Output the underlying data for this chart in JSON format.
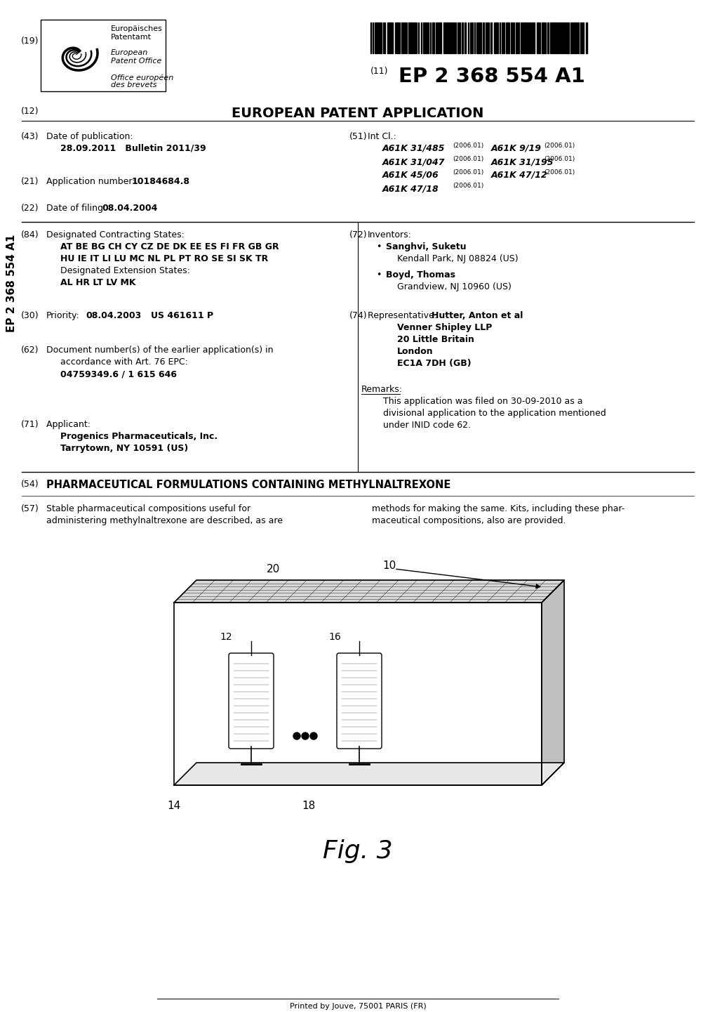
{
  "title": "EP 2 368 554 A1",
  "patent_type": "EUROPEAN PATENT APPLICATION",
  "field19": "(19)",
  "field11": "(11)",
  "field12": "(12)",
  "field43": "(43)",
  "field51": "(51)",
  "field21": "(21)",
  "field22": "(22)",
  "field84": "(84)",
  "field72": "(72)",
  "field30": "(30)",
  "field74": "(74)",
  "field62": "(62)",
  "field71": "(71)",
  "field54": "(54)",
  "field57": "(57)",
  "date_pub_label": "Date of publication:",
  "date_pub_value": "28.09.2011   Bulletin 2011/39",
  "int_cl_label": "Int Cl.:",
  "int_cl_codes": [
    [
      "A61K 31/485",
      "(2006.01)",
      "A61K 9/19",
      "(2006.01)"
    ],
    [
      "A61K 31/047",
      "(2006.01)",
      "A61K 31/195",
      "(2006.01)"
    ],
    [
      "A61K 45/06",
      "(2006.01)",
      "A61K 47/12",
      "(2006.01)"
    ],
    [
      "A61K 47/18",
      "(2006.01)",
      "",
      ""
    ]
  ],
  "app_num_label": "Application number: ",
  "app_num_value": "10184684.8",
  "date_filing_label": "Date of filing: ",
  "date_filing_value": "08.04.2004",
  "designated_label": "Designated Contracting States:",
  "designated_line1": "AT BE BG CH CY CZ DE DK EE ES FI FR GB GR",
  "designated_line2": "HU IE IT LI LU MC NL PL PT RO SE SI SK TR",
  "ext_states_label": "Designated Extension States:",
  "ext_states_value": "AL HR LT LV MK",
  "inventors_label": "Inventors:",
  "inventors": [
    [
      "Sanghvi, Suketu",
      "Kendall Park, NJ 08824 (US)"
    ],
    [
      "Boyd, Thomas",
      "Grandview, NJ 10960 (US)"
    ]
  ],
  "priority_label": "Priority:  ",
  "priority_date": "08.04.2003",
  "priority_ref": "US 461611 P",
  "representative_label": "Representative: ",
  "representative_name": "Hutter, Anton et al",
  "representative_lines": [
    "Venner Shipley LLP",
    "20 Little Britain",
    "London",
    "EC1A 7DH (GB)"
  ],
  "doc_num_label1": "Document number(s) of the earlier application(s) in",
  "doc_num_label2": "accordance with Art. 76 EPC:",
  "doc_num_value": "04759349.6 / 1 615 646",
  "applicant_label": "Applicant: ",
  "applicant_line1": "Progenics Pharmaceuticals, Inc.",
  "applicant_line2": "Tarrytown, NY 10591 (US)",
  "remarks_label": "Remarks:",
  "remarks_line1": "This application was filed on 30-09-2010 as a",
  "remarks_line2": "divisional application to the application mentioned",
  "remarks_line3": "under INID code 62.",
  "title54": "PHARMACEUTICAL FORMULATIONS CONTAINING METHYLNALTREXONE",
  "abstract_left1": "Stable pharmaceutical compositions useful for",
  "abstract_left2": "administering methylnaltrexone are described, as are",
  "abstract_right1": "methods for making the same. Kits, including these phar-",
  "abstract_right2": "maceutical compositions, also are provided.",
  "fig_label": "Fig. 3",
  "footer": "Printed by Jouve, 75001 PARIS (FR)",
  "sidebar": "EP 2 368 554 A1",
  "bg_color": "#ffffff",
  "text_color": "#000000",
  "epo_lines": [
    "Europäisches",
    "Patentamt",
    "",
    "European",
    "Patent Office",
    "",
    "Office européen",
    "des brevets"
  ]
}
